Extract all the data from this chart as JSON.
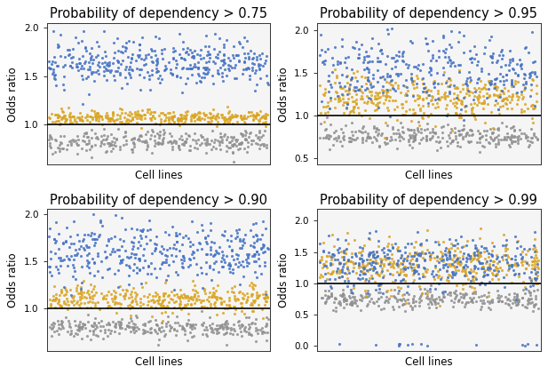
{
  "titles": [
    "Probability of dependency > 0.75",
    "Probability of dependency > 0.95",
    "Probability of dependency > 0.90",
    "Probability of dependency > 0.99"
  ],
  "ylabel": "Odds ratio",
  "xlabel": "Cell lines",
  "blue_color": "#4472C4",
  "gold_color": "#DAA520",
  "gray_color": "#909090",
  "hline_y": 1.0,
  "subplots": [
    {
      "ylim": [
        0.58,
        2.05
      ],
      "yticks": [
        1.0,
        1.5,
        2.0
      ],
      "blue_mean": 1.65,
      "blue_std": 0.13,
      "gold_mean": 1.07,
      "gold_std": 0.035,
      "gray_mean": 0.82,
      "gray_std": 0.055,
      "n_blue": 400,
      "n_gold": 350,
      "n_gray": 300
    },
    {
      "ylim": [
        0.42,
        2.08
      ],
      "yticks": [
        0.5,
        1.0,
        1.5,
        2.0
      ],
      "blue_mean": 1.52,
      "blue_std": 0.2,
      "gold_mean": 1.2,
      "gold_std": 0.13,
      "gray_mean": 0.76,
      "gray_std": 0.065,
      "n_blue": 350,
      "n_gold": 400,
      "n_gray": 300
    },
    {
      "ylim": [
        0.55,
        2.05
      ],
      "yticks": [
        1.0,
        1.5,
        2.0
      ],
      "blue_mean": 1.6,
      "blue_std": 0.16,
      "gold_mean": 1.1,
      "gold_std": 0.07,
      "gray_mean": 0.8,
      "gray_std": 0.06,
      "n_blue": 400,
      "n_gold": 370,
      "n_gray": 300
    },
    {
      "ylim": [
        -0.08,
        2.18
      ],
      "yticks": [
        0.0,
        0.5,
        1.0,
        1.5,
        2.0
      ],
      "blue_mean": 1.33,
      "blue_std": 0.22,
      "gold_mean": 1.3,
      "gold_std": 0.19,
      "gray_mean": 0.75,
      "gray_std": 0.075,
      "n_blue": 380,
      "n_gold": 400,
      "n_gray": 300
    }
  ],
  "n_cells": 500,
  "title_fontsize": 10.5,
  "label_fontsize": 8.5,
  "tick_fontsize": 7.5,
  "marker_size": 5,
  "alpha": 0.85,
  "background_color": "#f5f5f5"
}
